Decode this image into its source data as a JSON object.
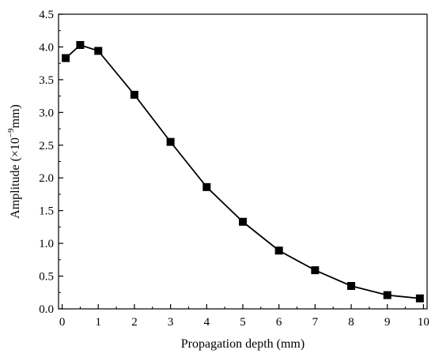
{
  "chart_data": {
    "type": "line",
    "xlabel": "Propagation depth (mm)",
    "ylabel": {
      "prefix": "Amplitude (×10",
      "exponent": "−9",
      "suffix": "mm)"
    },
    "xlim": [
      -0.1,
      10.1
    ],
    "ylim": [
      0,
      4.5
    ],
    "x_ticks": [
      0,
      1,
      2,
      3,
      4,
      5,
      6,
      7,
      8,
      9,
      10
    ],
    "y_ticks": [
      0.0,
      0.5,
      1.0,
      1.5,
      2.0,
      2.5,
      3.0,
      3.5,
      4.0,
      4.5
    ],
    "x_tick_labels": [
      "0",
      "1",
      "2",
      "3",
      "4",
      "5",
      "6",
      "7",
      "8",
      "9",
      "10"
    ],
    "y_tick_labels": [
      "0.0",
      "0.5",
      "1.0",
      "1.5",
      "2.0",
      "2.5",
      "3.0",
      "3.5",
      "4.0",
      "4.5"
    ],
    "grid": false,
    "marker": "square",
    "series": [
      {
        "x": [
          0.1,
          0.5,
          1,
          2,
          3,
          4,
          5,
          6,
          7,
          8,
          9,
          9.9
        ],
        "y": [
          3.83,
          4.03,
          3.94,
          3.27,
          2.55,
          1.86,
          1.33,
          0.89,
          0.59,
          0.35,
          0.21,
          0.16
        ],
        "color": "#000000"
      }
    ]
  }
}
